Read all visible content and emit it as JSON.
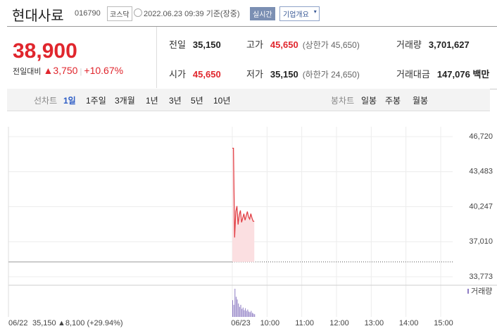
{
  "header": {
    "name": "현대사료",
    "code": "016790",
    "market": "코스닥",
    "timestamp": "2022.06.23 09:39 기준(장중)",
    "realtime": "실시간",
    "company_button": "기업개요"
  },
  "quote": {
    "price": "38,900",
    "change_label": "전일대비",
    "change": "▲3,750",
    "change_rate": "+10.67%",
    "stats": [
      {
        "label": "전일",
        "value": "35,150"
      },
      {
        "label": "고가",
        "value": "45,650",
        "note": "(상한가 45,650)"
      },
      {
        "label": "거래량",
        "value": "3,701,627"
      },
      {
        "label": "시가",
        "value": "45,650"
      },
      {
        "label": "저가",
        "value": "35,150",
        "note": "(하한가 24,650)"
      },
      {
        "label": "거래대금",
        "value": "147,076 백만"
      }
    ]
  },
  "tabs": {
    "line_label": "선차트",
    "line_periods": [
      "1일",
      "1주일",
      "3개월",
      "1년",
      "3년",
      "5년",
      "10년"
    ],
    "selected_period": "1일",
    "candle_label": "봉차트",
    "candle_periods": [
      "일봉",
      "주봉",
      "월봉"
    ]
  },
  "chart_data": {
    "type": "line",
    "x": [
      "09:00",
      "09:02",
      "09:04",
      "09:06",
      "09:08",
      "09:10",
      "09:12",
      "09:14",
      "09:16",
      "09:18",
      "09:20",
      "09:22",
      "09:24",
      "09:26",
      "09:28",
      "09:30",
      "09:32",
      "09:34",
      "09:36",
      "09:38"
    ],
    "values": [
      45650,
      45650,
      37400,
      39800,
      40300,
      38600,
      39500,
      39900,
      38800,
      39200,
      39600,
      39000,
      39400,
      39800,
      39300,
      39100,
      39600,
      39200,
      38900,
      38900
    ],
    "color": "#e0383e",
    "area_color": "#fbdfe1",
    "reference_value": 35150,
    "ylim": [
      33773,
      46720
    ],
    "yticks": [
      {
        "value": 46720,
        "label": "46,720"
      },
      {
        "value": 43483,
        "label": "43,483"
      },
      {
        "value": 40247,
        "label": "40,247"
      },
      {
        "value": 37010,
        "label": "37,010"
      },
      {
        "value": 33773,
        "label": "33,773"
      }
    ],
    "xlim": [
      "09:00",
      "15:30"
    ],
    "xticks": [
      {
        "value": "09:00",
        "label": "06/23"
      },
      "10:00",
      "11:00",
      "12:00",
      "13:00",
      "14:00",
      "15:00"
    ],
    "grid": true,
    "volume": {
      "name": "거래량",
      "color": "#8e7cc3",
      "values": [
        250,
        180,
        420,
        300,
        260,
        200,
        150,
        180,
        120,
        140,
        100,
        130,
        90,
        110,
        80,
        70,
        90,
        60,
        50,
        40
      ]
    },
    "prev_day": {
      "date": "06/22",
      "close": "35,150",
      "change": "▲8,100 (+29.94%)"
    }
  }
}
